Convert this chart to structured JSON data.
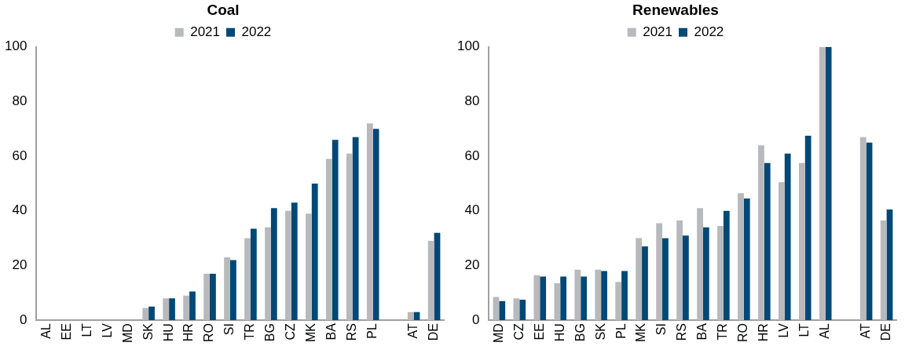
{
  "chart_data": [
    {
      "type": "bar",
      "title": "Coal",
      "categories": [
        "AL",
        "EE",
        "LT",
        "LV",
        "MD",
        "SK",
        "HU",
        "HR",
        "RO",
        "SI",
        "TR",
        "BG",
        "CZ",
        "MK",
        "BA",
        "RS",
        "PL",
        null,
        "AT",
        "DE"
      ],
      "series": [
        {
          "name": "2021",
          "color": "#b8b9bd",
          "values": [
            0,
            0,
            0,
            0,
            0,
            4.5,
            8,
            9,
            17,
            23,
            30,
            34,
            40,
            39,
            59,
            61,
            72,
            null,
            3,
            29
          ]
        },
        {
          "name": "2022",
          "color": "#004876",
          "values": [
            0,
            0,
            0,
            0,
            0,
            5,
            8,
            10.5,
            17,
            22,
            33.5,
            41,
            43,
            50,
            66,
            67,
            70,
            null,
            3,
            32
          ]
        }
      ],
      "ylim": [
        0,
        100
      ],
      "yticks": [
        0,
        20,
        40,
        60,
        80,
        100
      ],
      "grid": false,
      "legend": "top"
    },
    {
      "type": "bar",
      "title": "Renewables",
      "categories": [
        "MD",
        "CZ",
        "EE",
        "HU",
        "BG",
        "SK",
        "PL",
        "MK",
        "SI",
        "RS",
        "BA",
        "TR",
        "RO",
        "HR",
        "LV",
        "LT",
        "AL",
        null,
        "AT",
        "DE"
      ],
      "series": [
        {
          "name": "2021",
          "color": "#b8b9bd",
          "values": [
            8.5,
            8,
            16.5,
            13.5,
            18.5,
            18.5,
            14,
            30,
            35.5,
            36.5,
            41,
            34.5,
            46.5,
            64,
            50.5,
            57.5,
            100,
            null,
            67,
            36.5
          ]
        },
        {
          "name": "2022",
          "color": "#004876",
          "values": [
            7,
            7.5,
            16,
            16,
            16,
            18,
            18,
            27,
            30,
            31,
            34,
            40,
            44.5,
            57.5,
            61,
            67.5,
            100,
            null,
            65,
            40.5
          ]
        }
      ],
      "ylim": [
        0,
        100
      ],
      "yticks": [
        0,
        20,
        40,
        60,
        80,
        100
      ],
      "grid": false,
      "legend": "top"
    }
  ]
}
